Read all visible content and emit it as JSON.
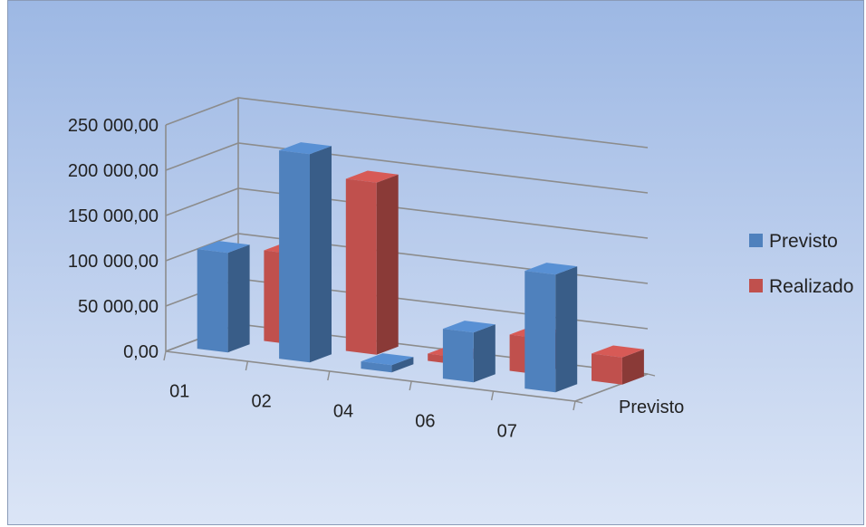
{
  "chart_data": {
    "type": "bar",
    "categories": [
      "01",
      "02",
      "04",
      "06",
      "07"
    ],
    "series": [
      {
        "name": "Previsto",
        "values": [
          110000,
          230000,
          8000,
          55000,
          130000
        ],
        "color": "#4f81bd"
      },
      {
        "name": "Realizado",
        "values": [
          100000,
          190000,
          8000,
          40000,
          30000
        ],
        "color": "#c0504d"
      }
    ],
    "ylim": [
      0,
      250000
    ],
    "yticks": [
      "0,00",
      "50 000,00",
      "100 000,00",
      "150 000,00",
      "200 000,00",
      "250 000,00"
    ],
    "depth_label": "Previsto",
    "legend_position": "right",
    "grid": true
  }
}
